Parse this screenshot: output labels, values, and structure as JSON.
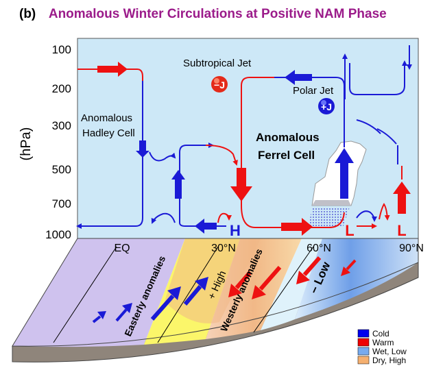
{
  "panel_letter": "(b)",
  "title": "Anomalous Winter Circulations at Positive NAM Phase",
  "y_axis": {
    "label": "(hPa)",
    "ticks": [
      "100",
      "200",
      "300",
      "500",
      "700",
      "1000"
    ]
  },
  "x_axis": {
    "ticks": [
      "EQ",
      "30°N",
      "60°N",
      "90°N"
    ]
  },
  "labels": {
    "subtropical_jet": "Subtropical Jet",
    "polar_jet": "Polar Jet",
    "hadley_line1": "Anomalous",
    "hadley_line2": "Hadley Cell",
    "ferrel_line1": "Anomalous",
    "ferrel_line2": "Ferrel Cell",
    "subtropical_jet_sign": "−J",
    "polar_jet_sign": "+J",
    "high_pressure": "H",
    "low_pressure_1": "L",
    "low_pressure_2": "L"
  },
  "surface_labels": {
    "easterly": "Easterly anomalies",
    "westerly": "Westerly anomalies",
    "high": "+ High",
    "low": "− Low"
  },
  "legend": [
    {
      "label": "Cold",
      "color": "#0000ee"
    },
    {
      "label": "Warm",
      "color": "#ee0000"
    },
    {
      "label": "Wet, Low",
      "color": "#77aaee"
    },
    {
      "label": "Dry, High",
      "color": "#f5b070"
    }
  ],
  "colors": {
    "sky": "#cde8f7",
    "cold": "#1a1ad6",
    "warm": "#ee1111",
    "easterly_band": "#fbf66a",
    "tropics": "#cfc2ee",
    "ground": "#8a7f76"
  }
}
